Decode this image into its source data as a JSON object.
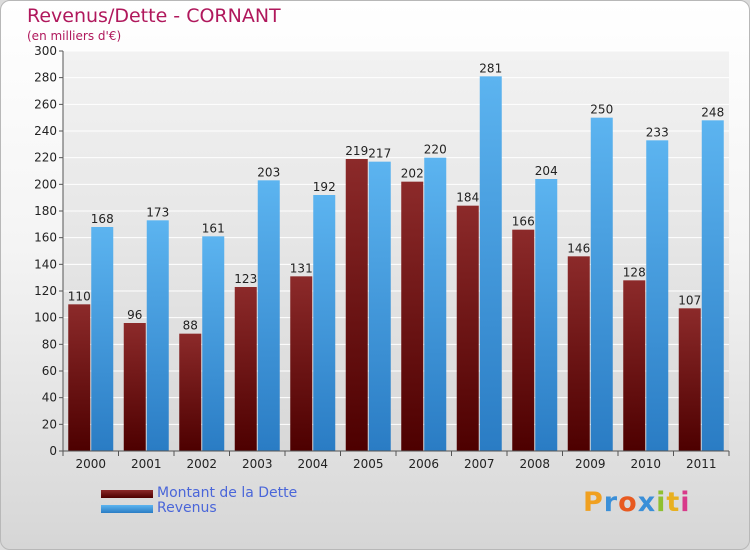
{
  "chart_data": {
    "type": "bar",
    "title": "Revenus/Dette - CORNANT",
    "subtitle": "(en milliers d'€)",
    "categories": [
      "2000",
      "2001",
      "2002",
      "2003",
      "2004",
      "2005",
      "2006",
      "2007",
      "2008",
      "2009",
      "2010",
      "2011"
    ],
    "series": [
      {
        "name": "Montant de la Dette",
        "color": "#7a1414",
        "values": [
          110,
          96,
          88,
          123,
          131,
          219,
          202,
          184,
          166,
          146,
          128,
          107
        ]
      },
      {
        "name": "Revenus",
        "color": "#4aa6e8",
        "values": [
          168,
          173,
          161,
          203,
          192,
          217,
          220,
          281,
          204,
          250,
          233,
          248
        ]
      }
    ],
    "ylim": [
      0,
      300
    ],
    "yticks": [
      0,
      20,
      40,
      60,
      80,
      100,
      120,
      140,
      160,
      180,
      200,
      220,
      240,
      260,
      280,
      300
    ],
    "grid": true,
    "legend_position": "bottom-left"
  },
  "branding": {
    "letters": [
      "P",
      "r",
      "o",
      "x",
      "i",
      "t",
      "i"
    ],
    "colors": [
      "#f0a020",
      "#3a8fd8",
      "#e85a20",
      "#3a8fd8",
      "#8fc030",
      "#e8b020",
      "#d83a8a"
    ]
  }
}
